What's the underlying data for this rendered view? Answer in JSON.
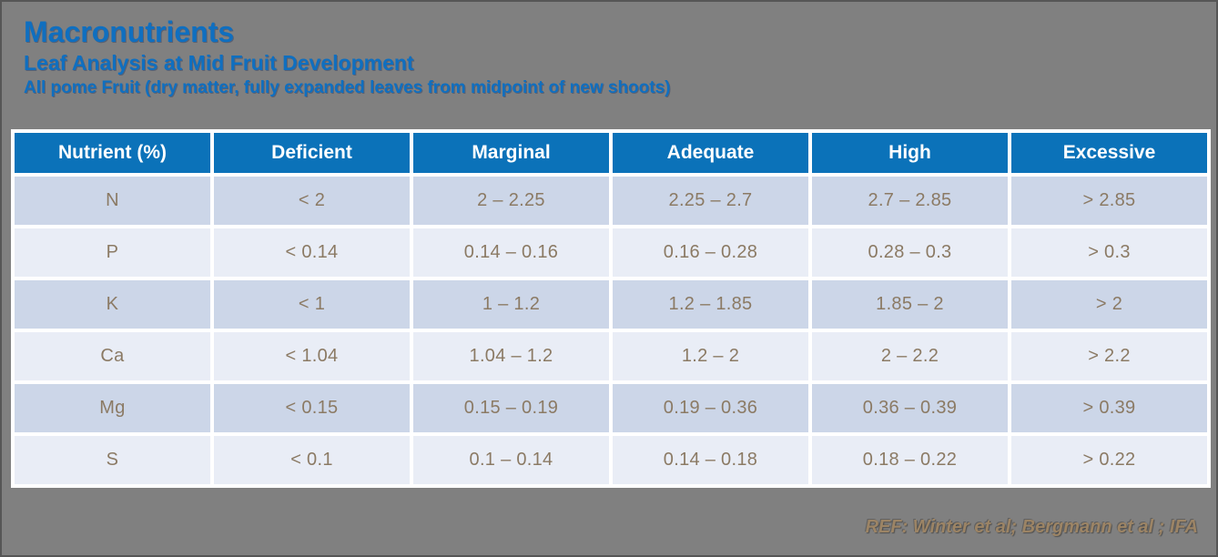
{
  "slide": {
    "title": "Macronutrients",
    "subtitle": "Leaf Analysis at Mid Fruit Development",
    "description": "All pome Fruit (dry matter, fully expanded leaves from midpoint of new shoots)",
    "reference": "REF: Winter et al; Bergmann et al ; IFA"
  },
  "colors": {
    "background": "#808080",
    "title_blue": "#0f6fc0",
    "table_header_bg": "#0b72b9",
    "table_header_text": "#ffffff",
    "row_odd_bg": "#ccd6e8",
    "row_even_bg": "#e9edf6",
    "cell_text": "#8b7a64",
    "reference_text": "#9c8465"
  },
  "chart_data": {
    "type": "table",
    "title": "Macronutrients — Leaf Analysis at Mid Fruit Development",
    "columns": [
      "Nutrient (%)",
      "Deficient",
      "Marginal",
      "Adequate",
      "High",
      "Excessive"
    ],
    "rows": [
      [
        "N",
        "< 2",
        "2 – 2.25",
        "2.25 – 2.7",
        "2.7 – 2.85",
        "> 2.85"
      ],
      [
        "P",
        "< 0.14",
        "0.14 – 0.16",
        "0.16 – 0.28",
        "0.28 – 0.3",
        "> 0.3"
      ],
      [
        "K",
        "< 1",
        "1 – 1.2",
        "1.2 – 1.85",
        "1.85 – 2",
        "> 2"
      ],
      [
        "Ca",
        "< 1.04",
        "1.04 – 1.2",
        "1.2 – 2",
        "2 – 2.2",
        "> 2.2"
      ],
      [
        "Mg",
        "< 0.15",
        "0.15 – 0.19",
        "0.19 – 0.36",
        "0.36 – 0.39",
        "> 0.39"
      ],
      [
        "S",
        "< 0.1",
        "0.1 – 0.14",
        "0.14 – 0.18",
        "0.18 – 0.22",
        "> 0.22"
      ]
    ]
  }
}
